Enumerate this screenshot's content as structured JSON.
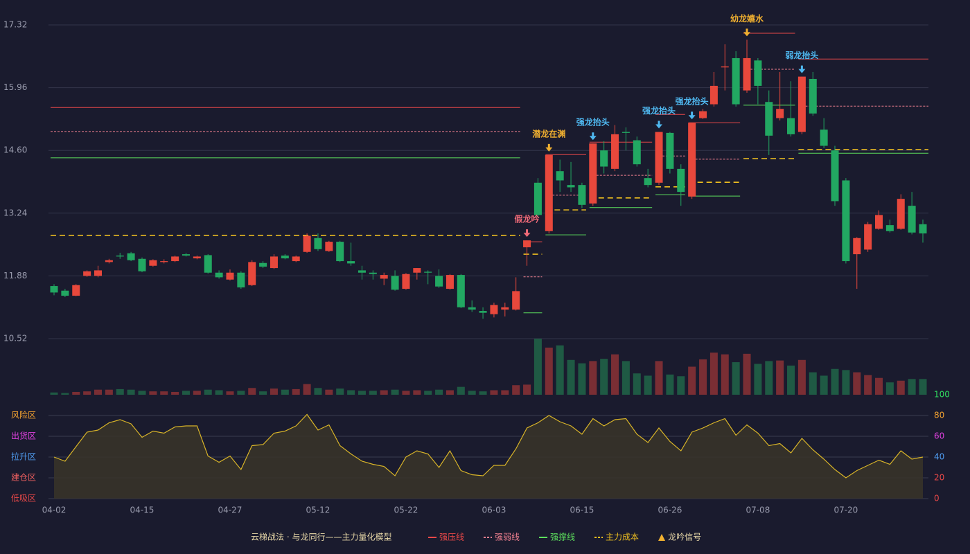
{
  "chart_data": {
    "type": "candlestick",
    "title": "云梯战法 · 与龙同行——主力量化模型",
    "categories": [
      "04-02",
      null,
      null,
      null,
      null,
      null,
      null,
      null,
      "04-15",
      null,
      null,
      null,
      null,
      null,
      null,
      null,
      "04-27",
      null,
      null,
      null,
      null,
      null,
      null,
      null,
      "05-12",
      null,
      null,
      null,
      null,
      null,
      null,
      null,
      "05-22",
      null,
      null,
      null,
      null,
      null,
      null,
      null,
      "06-03",
      null,
      null,
      null,
      null,
      null,
      null,
      null,
      "06-15",
      null,
      null,
      null,
      null,
      null,
      null,
      null,
      "06-26",
      null,
      null,
      null,
      null,
      null,
      null,
      null,
      "07-08",
      null,
      null,
      null,
      null,
      null,
      null,
      null,
      "07-20",
      null,
      null,
      null,
      null,
      null,
      null,
      null
    ],
    "open": [
      11.66,
      11.56,
      11.45,
      11.88,
      11.88,
      12.18,
      12.32,
      12.37,
      12.25,
      12.1,
      12.18,
      12.2,
      12.35,
      12.26,
      12.33,
      11.95,
      11.8,
      11.95,
      11.68,
      12.16,
      12.05,
      12.32,
      12.2,
      12.4,
      12.7,
      12.42,
      12.62,
      12.2,
      12.0,
      11.95,
      11.82,
      11.88,
      11.6,
      11.95,
      11.97,
      11.88,
      11.6,
      11.9,
      11.2,
      11.12,
      11.05,
      11.15,
      11.15,
      12.5,
      13.9,
      12.85,
      14.15,
      13.85,
      13.85,
      13.45,
      14.6,
      14.2,
      15.0,
      14.82,
      14.0,
      13.9,
      14.98,
      14.2,
      13.6,
      15.3,
      15.6,
      16.4,
      16.6,
      15.9,
      16.55,
      15.65,
      15.3,
      15.3,
      15.0,
      16.15,
      15.05,
      14.6,
      13.95,
      12.35,
      12.45,
      12.9,
      12.98,
      12.9,
      13.4,
      13.0
    ],
    "close": [
      11.52,
      11.45,
      11.68,
      11.98,
      12.0,
      12.22,
      12.3,
      12.22,
      11.98,
      12.22,
      12.2,
      12.3,
      12.32,
      12.3,
      11.95,
      11.85,
      11.95,
      11.63,
      12.18,
      12.08,
      12.3,
      12.26,
      12.3,
      12.75,
      12.46,
      12.62,
      12.2,
      12.15,
      11.95,
      11.92,
      11.9,
      11.58,
      11.92,
      12.05,
      11.95,
      11.65,
      11.9,
      11.2,
      11.15,
      11.08,
      11.25,
      11.2,
      11.55,
      12.65,
      13.2,
      14.5,
      13.95,
      13.8,
      13.42,
      14.75,
      14.25,
      14.95,
      14.98,
      14.3,
      13.85,
      15.0,
      14.2,
      13.7,
      15.2,
      15.45,
      16.0,
      16.42,
      15.6,
      16.6,
      16.0,
      14.92,
      15.5,
      14.95,
      16.2,
      15.4,
      14.7,
      13.5,
      12.2,
      12.7,
      13.0,
      13.2,
      12.85,
      13.55,
      12.82,
      12.8
    ],
    "high": [
      11.7,
      11.6,
      11.7,
      12.0,
      12.1,
      12.25,
      12.38,
      12.4,
      12.28,
      12.24,
      12.24,
      12.32,
      12.38,
      12.32,
      12.35,
      12.0,
      12.02,
      11.98,
      12.22,
      12.2,
      12.35,
      12.35,
      12.32,
      12.8,
      12.8,
      12.64,
      12.64,
      12.6,
      12.1,
      12.0,
      11.95,
      12.0,
      11.94,
      12.05,
      12.0,
      12.02,
      11.92,
      11.92,
      11.35,
      11.2,
      11.3,
      11.3,
      11.85,
      12.65,
      14.0,
      14.5,
      14.4,
      14.35,
      13.9,
      14.75,
      14.8,
      15.15,
      15.1,
      14.9,
      14.2,
      15.0,
      15.0,
      14.3,
      15.2,
      15.5,
      16.3,
      16.9,
      16.75,
      17.0,
      16.6,
      15.9,
      16.3,
      16.1,
      16.2,
      16.3,
      15.3,
      14.7,
      14.0,
      12.72,
      13.05,
      13.3,
      13.1,
      13.65,
      13.7,
      13.1
    ],
    "low": [
      11.46,
      11.42,
      11.44,
      11.86,
      11.85,
      12.15,
      12.25,
      12.2,
      11.96,
      12.08,
      12.15,
      12.18,
      12.3,
      12.24,
      11.93,
      11.82,
      11.78,
      11.6,
      11.66,
      12.05,
      12.03,
      12.24,
      12.18,
      12.38,
      12.42,
      12.4,
      12.18,
      12.1,
      11.8,
      11.8,
      11.68,
      11.56,
      11.58,
      11.8,
      11.7,
      11.62,
      11.58,
      11.18,
      11.1,
      10.95,
      10.98,
      11.0,
      11.13,
      12.1,
      13.15,
      12.8,
      13.7,
      13.7,
      13.35,
      13.4,
      14.1,
      14.15,
      14.6,
      14.25,
      13.8,
      13.85,
      14.1,
      13.4,
      13.55,
      15.28,
      15.55,
      15.9,
      15.55,
      15.85,
      15.6,
      14.5,
      15.25,
      14.9,
      14.95,
      15.35,
      14.65,
      13.4,
      12.15,
      11.6,
      12.4,
      12.88,
      12.82,
      12.88,
      12.78,
      12.6
    ],
    "up_color": "#e8483c",
    "down_color": "#22a862",
    "ylim": [
      10.52,
      17.32
    ],
    "yticks": [
      17.32,
      15.96,
      {
        "value": 14.6,
        "label": "14.60"
      },
      13.24,
      11.88,
      10.52
    ],
    "grid": true,
    "volume": [
      4,
      3,
      5,
      6,
      9,
      9,
      10,
      9,
      7,
      6,
      6,
      5,
      7,
      7,
      9,
      8,
      6,
      7,
      12,
      6,
      11,
      9,
      10,
      19,
      12,
      9,
      11,
      8,
      7,
      7,
      8,
      9,
      7,
      8,
      7,
      9,
      8,
      14,
      7,
      6,
      8,
      8,
      17,
      18,
      100,
      84,
      88,
      62,
      56,
      60,
      64,
      72,
      60,
      38,
      34,
      60,
      36,
      33,
      50,
      63,
      75,
      72,
      58,
      73,
      55,
      60,
      61,
      52,
      62,
      40,
      34,
      46,
      44,
      40,
      35,
      30,
      22,
      25,
      28,
      28
    ],
    "indicator": {
      "color": "#d8b428",
      "values": [
        40,
        36,
        50,
        64,
        66,
        73,
        76,
        72,
        59,
        65,
        63,
        69,
        70,
        70,
        41,
        35,
        41,
        28,
        51,
        52,
        63,
        65,
        70,
        81,
        66,
        71,
        51,
        43,
        36,
        33,
        31,
        22,
        40,
        46,
        43,
        30,
        46,
        27,
        23,
        22,
        32,
        32,
        48,
        68,
        73,
        80,
        74,
        70,
        62,
        77,
        70,
        76,
        77,
        62,
        54,
        68,
        55,
        46,
        64,
        68,
        73,
        77,
        61,
        71,
        63,
        51,
        53,
        44,
        58,
        47,
        38,
        28,
        20,
        27,
        32,
        37,
        33,
        46,
        38,
        40
      ],
      "ylim": [
        0,
        100
      ],
      "yticks": [
        0,
        20,
        40,
        60,
        80,
        100
      ],
      "tick_colors": [
        "#e84848",
        "#e84848",
        "#4f9cf0",
        "#e040e0",
        "#f0a030",
        "#30e060"
      ],
      "zones": [
        {
          "value": 80,
          "label": "风险区",
          "color": "#f0a030"
        },
        {
          "value": 60,
          "label": "出货区",
          "color": "#e040e0"
        },
        {
          "value": 40,
          "label": "拉升区",
          "color": "#4f9cf0"
        },
        {
          "value": 20,
          "label": "建仓区",
          "color": "#f06060"
        },
        {
          "value": 0,
          "label": "低吸区",
          "color": "#e84848"
        }
      ]
    },
    "levels": {
      "segments": [
        [
          0,
          42
        ],
        [
          43,
          44
        ],
        [
          45,
          48
        ],
        [
          49,
          54
        ],
        [
          55,
          57
        ],
        [
          58,
          62
        ],
        [
          63,
          67
        ],
        [
          68,
          79
        ]
      ],
      "series": [
        {
          "name": "强压线",
          "color": "#e84848",
          "dash": false,
          "values": [
            15.53,
            12.62,
            14.51,
            14.78,
            15.38,
            15.2,
            17.14,
            16.58
          ]
        },
        {
          "name": "强弱线",
          "color": "#f08090",
          "dash": true,
          "values": [
            15.01,
            11.86,
            13.63,
            14.06,
            14.48,
            14.41,
            16.36,
            15.56
          ]
        },
        {
          "name": "强撑线",
          "color": "#5de05d",
          "dash": false,
          "values": [
            14.44,
            11.08,
            12.77,
            13.36,
            13.64,
            13.61,
            15.58,
            14.54
          ]
        },
        {
          "name": "主力成本",
          "color": "#f0c020",
          "dash": true,
          "values": [
            12.76,
            12.35,
            13.31,
            13.57,
            13.81,
            13.91,
            14.42,
            14.62
          ]
        }
      ]
    },
    "signals": [
      {
        "index": 43,
        "label": "假龙吟",
        "color": "#f06a78"
      },
      {
        "index": 45,
        "label": "潜龙在渊",
        "color": "#f0b030"
      },
      {
        "index": 49,
        "label": "强龙抬头",
        "color": "#4fb8f0"
      },
      {
        "index": 55,
        "label": "强龙抬头",
        "color": "#4fb8f0"
      },
      {
        "index": 58,
        "label": "强龙抬头",
        "color": "#4fb8f0"
      },
      {
        "index": 63,
        "label": "幼龙嬉水",
        "color": "#f0b030"
      },
      {
        "index": 68,
        "label": "弱龙抬头",
        "color": "#4fb8f0"
      }
    ],
    "signal_legend": {
      "label": "龙吟信号",
      "color": "#f0b030"
    }
  }
}
